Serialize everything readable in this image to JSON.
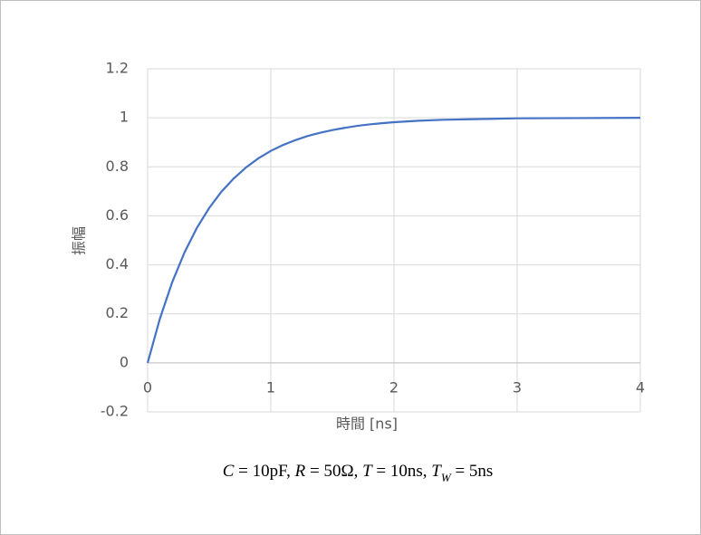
{
  "chart_data": {
    "type": "line",
    "x": [
      0,
      0.1,
      0.2,
      0.3,
      0.4,
      0.5,
      0.6,
      0.7,
      0.8,
      0.9,
      1.0,
      1.1,
      1.2,
      1.3,
      1.4,
      1.5,
      1.6,
      1.7,
      1.8,
      1.9,
      2.0,
      2.2,
      2.4,
      2.6,
      2.8,
      3.0,
      3.5,
      4.0
    ],
    "series": [
      {
        "color": "#4472c4",
        "values": [
          0,
          0.181,
          0.33,
          0.451,
          0.551,
          0.632,
          0.699,
          0.753,
          0.798,
          0.835,
          0.865,
          0.889,
          0.909,
          0.926,
          0.939,
          0.95,
          0.959,
          0.967,
          0.973,
          0.978,
          0.982,
          0.988,
          0.992,
          0.994,
          0.996,
          0.998,
          0.999,
          1.0
        ]
      }
    ],
    "xlim": [
      0,
      4
    ],
    "xticks": [
      0,
      1,
      2,
      3,
      4
    ],
    "ylim": [
      -0.2,
      1.2
    ],
    "yticks": [
      -0.2,
      0,
      0.2,
      0.4,
      0.6,
      0.8,
      1,
      1.2
    ],
    "x_label": "時間 [ns]",
    "y_label": "振幅",
    "grid": true,
    "annotation": [
      {
        "text": "C",
        "italic": true
      },
      {
        "text": " = 10pF, "
      },
      {
        "text": "R",
        "italic": true
      },
      {
        "text": " = 50Ω, "
      },
      {
        "text": "T",
        "italic": true
      },
      {
        "text": " = 10ns, "
      },
      {
        "text": "T",
        "italic": true
      },
      {
        "text": "W",
        "italic": true,
        "sub": true
      },
      {
        "text": " = 5ns"
      }
    ]
  }
}
